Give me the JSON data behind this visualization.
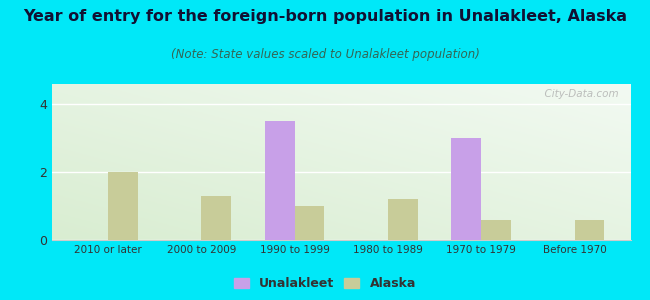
{
  "categories": [
    "2010 or later",
    "2000 to 2009",
    "1990 to 1999",
    "1980 to 1989",
    "1970 to 1979",
    "Before 1970"
  ],
  "unalakleet_values": [
    0,
    0,
    3.5,
    0,
    3.0,
    0
  ],
  "alaska_values": [
    2.0,
    1.3,
    1.0,
    1.2,
    0.6,
    0.6
  ],
  "unalakleet_color": "#c8a0e8",
  "alaska_color": "#c8cc99",
  "title": "Year of entry for the foreign-born population in Unalakleet, Alaska",
  "subtitle": "(Note: State values scaled to Unalakleet population)",
  "title_fontsize": 11.5,
  "subtitle_fontsize": 8.5,
  "ylim": [
    0,
    4.6
  ],
  "yticks": [
    0,
    2,
    4
  ],
  "bg_outer": "#00e8f8",
  "watermark": "  City-Data.com",
  "legend_unalakleet": "Unalakleet",
  "legend_alaska": "Alaska",
  "bar_width": 0.32,
  "title_color": "#111133",
  "subtitle_color": "#336655"
}
